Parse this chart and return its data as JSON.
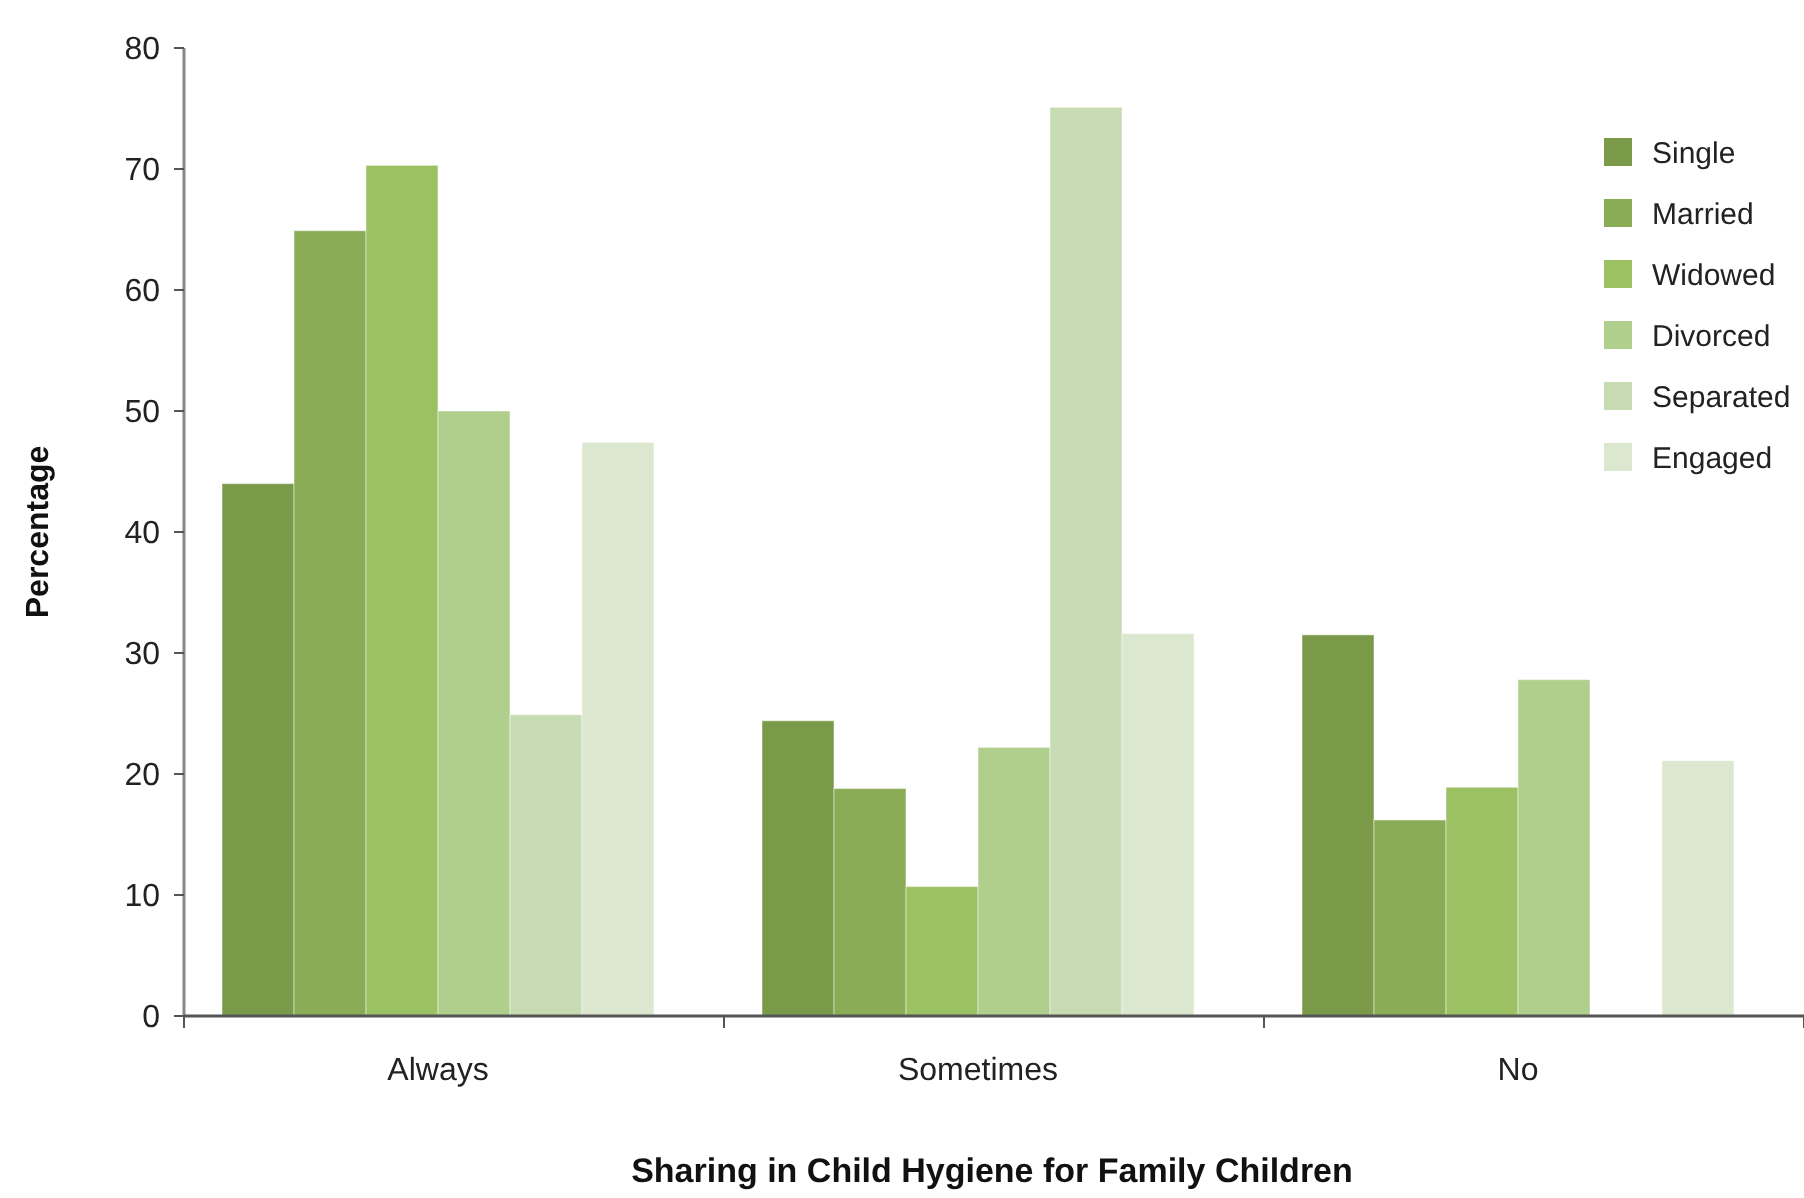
{
  "chart_data": {
    "type": "bar",
    "xlabel": "Sharing in Child Hygiene for Family Children",
    "ylabel": "Percentage",
    "categories": [
      "Always",
      "Sometimes",
      "No"
    ],
    "series": [
      {
        "name": "Single",
        "color": "#7a9a4a",
        "values": [
          44.0,
          24.4,
          31.5
        ]
      },
      {
        "name": "Married",
        "color": "#8aac56",
        "values": [
          64.9,
          18.8,
          16.2
        ]
      },
      {
        "name": "Widowed",
        "color": "#9bc163",
        "values": [
          70.3,
          10.7,
          18.9
        ]
      },
      {
        "name": "Divorced",
        "color": "#b0ce8c",
        "values": [
          50.0,
          22.2,
          27.8
        ]
      },
      {
        "name": "Separated",
        "color": "#c8dcb3",
        "values": [
          24.9,
          75.1,
          0
        ]
      },
      {
        "name": "Engaged",
        "color": "#dce7cf",
        "values": [
          47.4,
          31.6,
          21.1
        ]
      }
    ],
    "ylim": [
      0,
      80
    ],
    "yticks": [
      0,
      10,
      20,
      30,
      40,
      50,
      60,
      70,
      80
    ],
    "legend": "top right",
    "grid": false
  }
}
